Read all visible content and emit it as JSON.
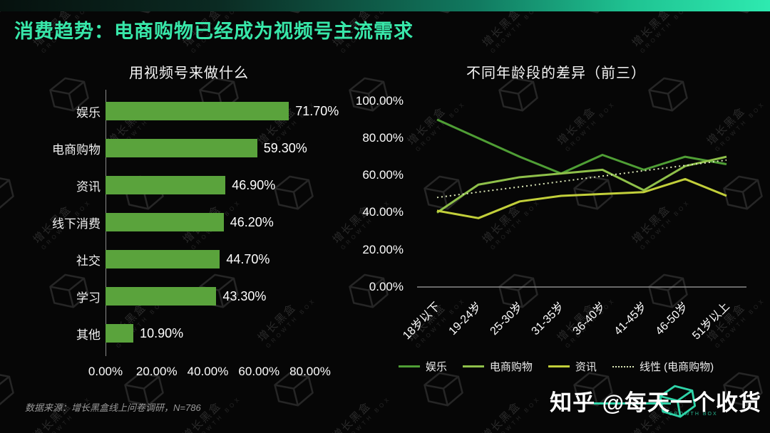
{
  "header": {
    "title": "消费趋势：电商购物已经成为视频号主流需求"
  },
  "watermark_brand": {
    "cn": "增长黑盒",
    "en": "GROWTH BOX"
  },
  "footer": {
    "source_note": "数据来源：增长黑盒线上问卷调研，N=786",
    "watermark": "知乎 @每天一个收货"
  },
  "chart_data": [
    {
      "type": "bar",
      "orientation": "horizontal",
      "title": "用视频号来做什么",
      "categories": [
        "娱乐",
        "电商购物",
        "资讯",
        "线下消费",
        "社交",
        "学习",
        "其他"
      ],
      "values": [
        71.7,
        59.3,
        46.9,
        46.2,
        44.7,
        43.3,
        10.9
      ],
      "value_labels": [
        "71.70%",
        "59.30%",
        "46.90%",
        "46.20%",
        "44.70%",
        "43.30%",
        "10.90%"
      ],
      "x_ticks": [
        "0.00%",
        "20.00%",
        "40.00%",
        "60.00%",
        "80.00%"
      ],
      "xlim": [
        0,
        80
      ],
      "bar_color": "#5aa33c",
      "grid": false
    },
    {
      "type": "line",
      "title": "不同年龄段的差异（前三）",
      "categories": [
        "18岁以下",
        "19-24岁",
        "25-30岁",
        "31-35岁",
        "36-40岁",
        "41-45岁",
        "46-50岁",
        "51岁以上"
      ],
      "y_ticks": [
        "0.00%",
        "20.00%",
        "40.00%",
        "60.00%",
        "80.00%",
        "100.00%"
      ],
      "ylim": [
        0,
        100
      ],
      "grid": false,
      "legend_position": "bottom",
      "series": [
        {
          "name": "娱乐",
          "color": "#4f9e35",
          "style": "solid",
          "values": [
            90,
            80,
            70,
            61,
            71,
            63,
            70,
            66
          ]
        },
        {
          "name": "电商购物",
          "color": "#8fc04a",
          "style": "solid",
          "values": [
            40,
            55,
            59,
            61,
            63,
            52,
            65,
            70
          ]
        },
        {
          "name": "资讯",
          "color": "#c2cf3a",
          "style": "solid",
          "values": [
            41,
            37,
            46,
            49,
            50,
            51,
            58,
            49
          ]
        },
        {
          "name": "线性 (电商购物)",
          "color": "#dce8b8",
          "style": "dotted",
          "values": [
            48.1,
            51.0,
            53.8,
            56.7,
            59.6,
            62.5,
            65.3,
            68.2
          ]
        }
      ]
    }
  ]
}
